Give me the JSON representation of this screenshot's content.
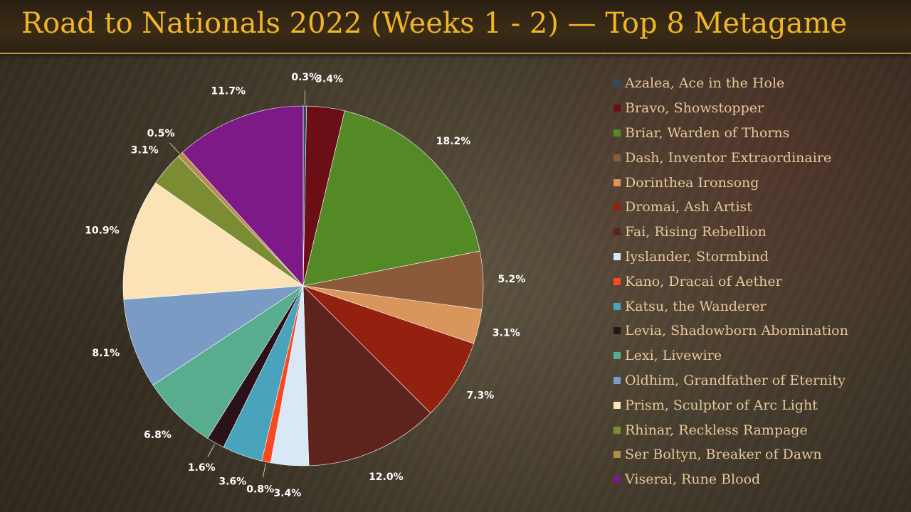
{
  "title": "Road to Nationals 2022 (Weeks 1 - 2) — Top 8 Metagame",
  "chart_data": {
    "type": "pie",
    "title": "Road to Nationals 2022 (Weeks 1 - 2) — Top 8 Metagame",
    "legend_position": "right",
    "slices": [
      {
        "label": "Azalea, Ace in the Hole",
        "value": 0.3,
        "value_label": "0.3%",
        "color": "#2f4b5e"
      },
      {
        "label": "Bravo, Showstopper",
        "value": 3.4,
        "value_label": "3.4%",
        "color": "#6b0e16"
      },
      {
        "label": "Briar, Warden of Thorns",
        "value": 18.2,
        "value_label": "18.2%",
        "color": "#548a26"
      },
      {
        "label": "Dash, Inventor Extraordinaire",
        "value": 5.2,
        "value_label": "5.2%",
        "color": "#8b5a3a"
      },
      {
        "label": "Dorinthea Ironsong",
        "value": 3.1,
        "value_label": "3.1%",
        "color": "#d9955a"
      },
      {
        "label": "Dromai, Ash Artist",
        "value": 7.3,
        "value_label": "7.3%",
        "color": "#92220f"
      },
      {
        "label": "Fai, Rising Rebellion",
        "value": 12.0,
        "value_label": "12.0%",
        "color": "#5c241c"
      },
      {
        "label": "Iyslander, Stormbind",
        "value": 3.4,
        "value_label": "3.4%",
        "color": "#d8e8f4"
      },
      {
        "label": "Kano, Dracai of Aether",
        "value": 0.8,
        "value_label": "0.8%",
        "color": "#fb4a22"
      },
      {
        "label": "Katsu, the Wanderer",
        "value": 3.6,
        "value_label": "3.6%",
        "color": "#4aa3bc"
      },
      {
        "label": "Levia, Shadowborn Abomination",
        "value": 1.6,
        "value_label": "1.6%",
        "color": "#2b1118"
      },
      {
        "label": "Lexi, Livewire",
        "value": 6.8,
        "value_label": "6.8%",
        "color": "#57ad8e"
      },
      {
        "label": "Oldhim, Grandfather of Eternity",
        "value": 8.1,
        "value_label": "8.1%",
        "color": "#7a9cc4"
      },
      {
        "label": "Prism, Sculptor of Arc Light",
        "value": 10.9,
        "value_label": "10.9%",
        "color": "#fbe3b7"
      },
      {
        "label": "Rhinar, Reckless Rampage",
        "value": 3.1,
        "value_label": "3.1%",
        "color": "#7b8c33"
      },
      {
        "label": "Ser Boltyn, Breaker of Dawn",
        "value": 0.5,
        "value_label": "0.5%",
        "color": "#b88a4c"
      },
      {
        "label": "Viserai, Rune Blood",
        "value": 11.7,
        "value_label": "11.7%",
        "color": "#7d1a87"
      }
    ]
  }
}
